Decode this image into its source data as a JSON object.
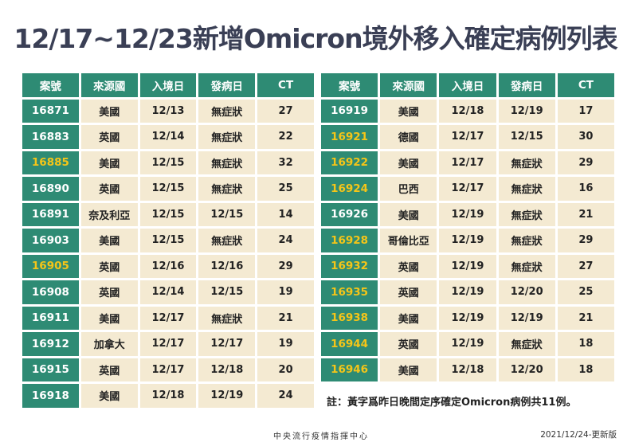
{
  "title": "12/17~12/23新增Omicron境外移入確定病例列表",
  "columns": [
    "案號",
    "來源國",
    "入境日",
    "發病日",
    "CT"
  ],
  "colors": {
    "header_bg": "#2e8b74",
    "case_id_bg": "#2e8b74",
    "cell_bg": "#f4ead2",
    "highlight_text": "#f5c518",
    "title_text": "#3a3f55"
  },
  "left_table": {
    "rows": [
      {
        "case": "16871",
        "country": "美國",
        "entry": "12/13",
        "onset": "無症狀",
        "ct": "27",
        "highlight": false
      },
      {
        "case": "16883",
        "country": "英國",
        "entry": "12/14",
        "onset": "無症狀",
        "ct": "22",
        "highlight": false
      },
      {
        "case": "16885",
        "country": "美國",
        "entry": "12/15",
        "onset": "無症狀",
        "ct": "32",
        "highlight": true
      },
      {
        "case": "16890",
        "country": "英國",
        "entry": "12/15",
        "onset": "無症狀",
        "ct": "25",
        "highlight": false
      },
      {
        "case": "16891",
        "country": "奈及利亞",
        "entry": "12/15",
        "onset": "12/15",
        "ct": "14",
        "highlight": false
      },
      {
        "case": "16903",
        "country": "美國",
        "entry": "12/15",
        "onset": "無症狀",
        "ct": "24",
        "highlight": false
      },
      {
        "case": "16905",
        "country": "英國",
        "entry": "12/16",
        "onset": "12/16",
        "ct": "29",
        "highlight": true
      },
      {
        "case": "16908",
        "country": "英國",
        "entry": "12/14",
        "onset": "12/15",
        "ct": "19",
        "highlight": false
      },
      {
        "case": "16911",
        "country": "美國",
        "entry": "12/17",
        "onset": "無症狀",
        "ct": "21",
        "highlight": false
      },
      {
        "case": "16912",
        "country": "加拿大",
        "entry": "12/17",
        "onset": "12/17",
        "ct": "19",
        "highlight": false
      },
      {
        "case": "16915",
        "country": "英國",
        "entry": "12/17",
        "onset": "12/18",
        "ct": "20",
        "highlight": false
      },
      {
        "case": "16918",
        "country": "美國",
        "entry": "12/18",
        "onset": "12/19",
        "ct": "24",
        "highlight": false
      }
    ]
  },
  "right_table": {
    "rows": [
      {
        "case": "16919",
        "country": "美國",
        "entry": "12/18",
        "onset": "12/19",
        "ct": "17",
        "highlight": false
      },
      {
        "case": "16921",
        "country": "德國",
        "entry": "12/17",
        "onset": "12/15",
        "ct": "30",
        "highlight": true
      },
      {
        "case": "16922",
        "country": "美國",
        "entry": "12/17",
        "onset": "無症狀",
        "ct": "29",
        "highlight": true
      },
      {
        "case": "16924",
        "country": "巴西",
        "entry": "12/17",
        "onset": "無症狀",
        "ct": "16",
        "highlight": true
      },
      {
        "case": "16926",
        "country": "美國",
        "entry": "12/19",
        "onset": "無症狀",
        "ct": "21",
        "highlight": false
      },
      {
        "case": "16928",
        "country": "哥倫比亞",
        "entry": "12/19",
        "onset": "無症狀",
        "ct": "29",
        "highlight": true
      },
      {
        "case": "16932",
        "country": "英國",
        "entry": "12/19",
        "onset": "無症狀",
        "ct": "27",
        "highlight": true
      },
      {
        "case": "16935",
        "country": "英國",
        "entry": "12/19",
        "onset": "12/20",
        "ct": "25",
        "highlight": true
      },
      {
        "case": "16938",
        "country": "美國",
        "entry": "12/19",
        "onset": "12/19",
        "ct": "21",
        "highlight": true
      },
      {
        "case": "16944",
        "country": "英國",
        "entry": "12/19",
        "onset": "無症狀",
        "ct": "18",
        "highlight": true
      },
      {
        "case": "16946",
        "country": "美國",
        "entry": "12/18",
        "onset": "12/20",
        "ct": "18",
        "highlight": true
      }
    ]
  },
  "note": "註：黃字爲昨日晚間定序確定Omicron病例共11例。",
  "footer": {
    "organization": "中央流行疫情指揮中心",
    "date": "2021/12/24-更新版"
  }
}
